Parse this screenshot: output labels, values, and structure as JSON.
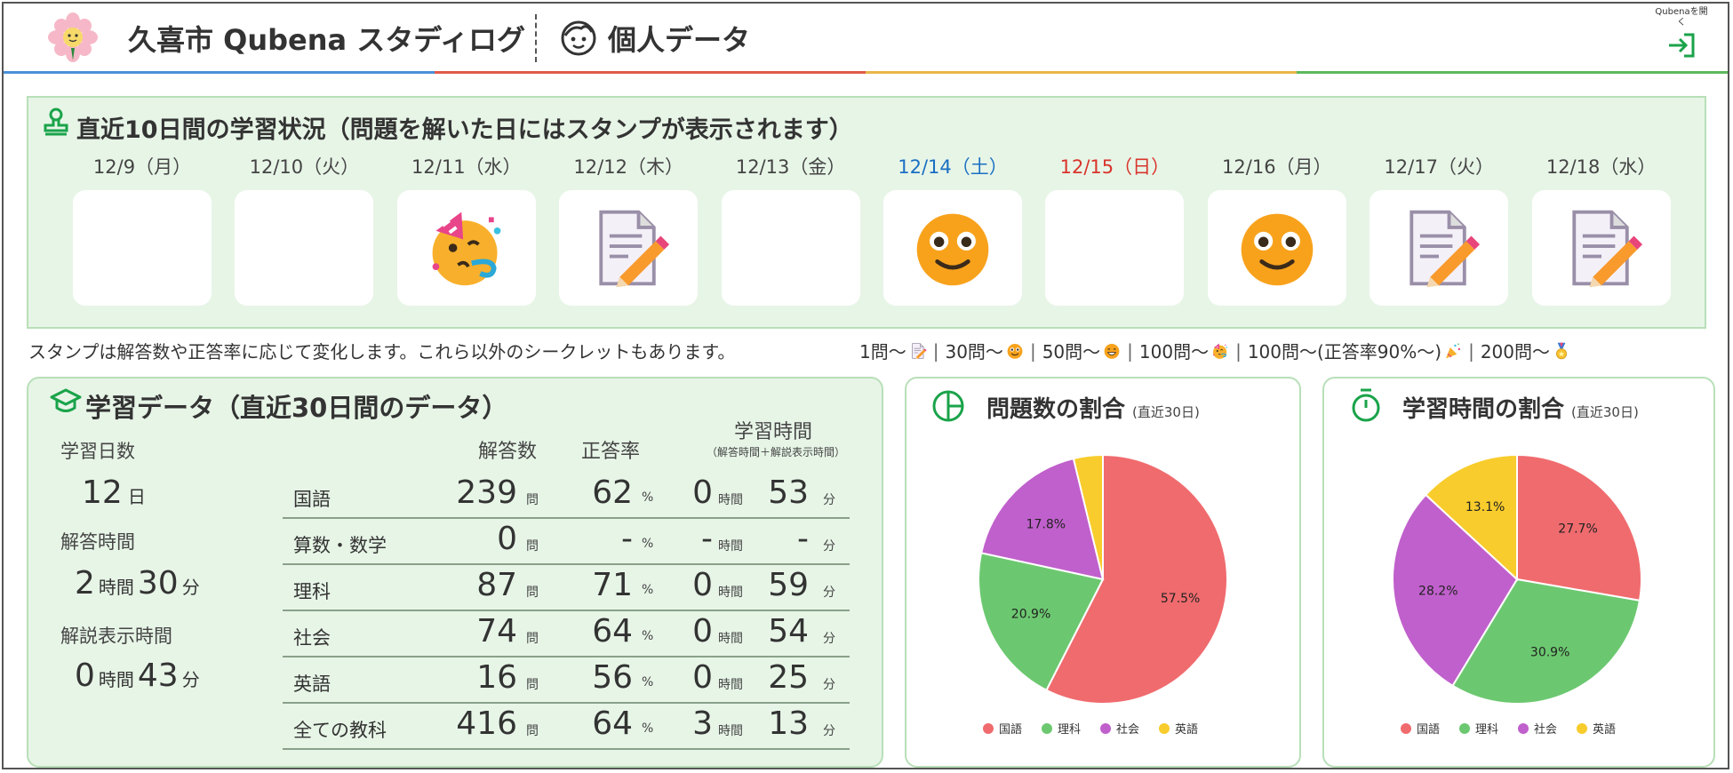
{
  "header": {
    "app_title": "久喜市 Qubena スタディログ",
    "page_title": "個人データ",
    "open_button_label": "Qubenaを開く",
    "bar_colors": [
      "#4a90d9",
      "#e05a4a",
      "#e8b64a",
      "#5cb85c"
    ]
  },
  "stamps": {
    "title": "直近10日間の学習状況（問題を解いた日にはスタンプが表示されます）",
    "days": [
      {
        "label": "12/9（月）",
        "stamp": "",
        "color": "#444"
      },
      {
        "label": "12/10（火）",
        "stamp": "",
        "color": "#444"
      },
      {
        "label": "12/11（水）",
        "stamp": "party-face-icon",
        "color": "#444"
      },
      {
        "label": "12/12（木）",
        "stamp": "memo-pencil-icon",
        "color": "#444"
      },
      {
        "label": "12/13（金）",
        "stamp": "",
        "color": "#444"
      },
      {
        "label": "12/14（土）",
        "stamp": "smile-face-icon",
        "color": "#1a6fc2"
      },
      {
        "label": "12/15（日）",
        "stamp": "",
        "color": "#d9342b"
      },
      {
        "label": "12/16（月）",
        "stamp": "smile-face-icon",
        "color": "#444"
      },
      {
        "label": "12/17（火）",
        "stamp": "memo-pencil-icon",
        "color": "#444"
      },
      {
        "label": "12/18（水）",
        "stamp": "memo-pencil-icon",
        "color": "#444"
      }
    ],
    "legend_text": "スタンプは解答数や正答率に応じて変化します。これら以外のシークレットもあります。",
    "legend_items": [
      {
        "label": "1問～",
        "icon": "memo-pencil-icon"
      },
      {
        "label": "30問～",
        "icon": "smile-face-icon"
      },
      {
        "label": "50問～",
        "icon": "grin-face-icon"
      },
      {
        "label": "100問～",
        "icon": "party-face-icon"
      },
      {
        "label": "100問～(正答率90%～)",
        "icon": "party-popper-icon"
      },
      {
        "label": "200問～",
        "icon": "medal-icon"
      }
    ]
  },
  "study": {
    "title": "学習データ（直近30日間のデータ）",
    "days_label": "学習日数",
    "days_value": "12",
    "days_unit": "日",
    "answer_time_label": "解答時間",
    "answer_time_h": "2",
    "answer_time_m": "30",
    "explain_time_label": "解説表示時間",
    "explain_time_h": "0",
    "explain_time_m": "43",
    "unit_hour": "時間",
    "unit_min": "分",
    "col_count": "解答数",
    "col_rate": "正答率",
    "col_time": "学習時間",
    "col_time_note": "（解答時間＋解説表示時間）",
    "unit_q": "問",
    "unit_pct": "%",
    "rows": [
      {
        "subject": "国語",
        "count": "239",
        "rate": "62",
        "hours": "0",
        "minutes": "53"
      },
      {
        "subject": "算数・数学",
        "count": "0",
        "rate": "-",
        "hours": "-",
        "minutes": "-"
      },
      {
        "subject": "理科",
        "count": "87",
        "rate": "71",
        "hours": "0",
        "minutes": "59"
      },
      {
        "subject": "社会",
        "count": "74",
        "rate": "64",
        "hours": "0",
        "minutes": "54"
      },
      {
        "subject": "英語",
        "count": "16",
        "rate": "56",
        "hours": "0",
        "minutes": "25"
      },
      {
        "subject": "全ての教科",
        "count": "416",
        "rate": "64",
        "hours": "3",
        "minutes": "13"
      }
    ]
  },
  "chart_data": [
    {
      "type": "pie",
      "title": "問題数の割合",
      "subtitle": "(直近30日)",
      "categories": [
        "国語",
        "理科",
        "社会",
        "英語"
      ],
      "values": [
        57.5,
        20.9,
        17.8,
        3.8
      ],
      "labels": [
        "57.5%",
        "20.9%",
        "17.8%",
        ""
      ],
      "colors": [
        "#f06b6e",
        "#6cc870",
        "#c060cc",
        "#f8cc2c"
      ],
      "legend": "bottom"
    },
    {
      "type": "pie",
      "title": "学習時間の割合",
      "subtitle": "(直近30日)",
      "categories": [
        "国語",
        "理科",
        "社会",
        "英語"
      ],
      "values": [
        27.7,
        30.9,
        28.2,
        13.1
      ],
      "labels": [
        "27.7%",
        "30.9%",
        "28.2%",
        "13.1%"
      ],
      "colors": [
        "#f06b6e",
        "#6cc870",
        "#c060cc",
        "#f8cc2c"
      ],
      "legend": "bottom"
    }
  ]
}
